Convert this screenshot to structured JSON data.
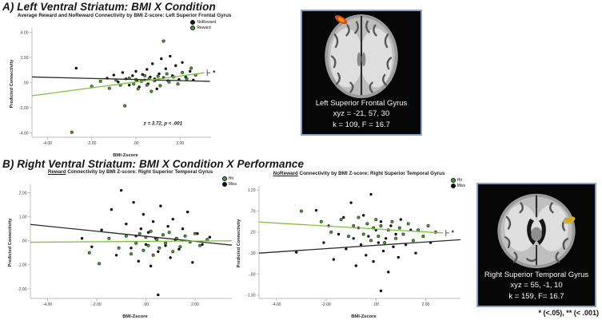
{
  "panel_a": {
    "heading": "A) Left Ventral Striatum: BMI X Condition"
  },
  "panel_b": {
    "heading": "B) Right Ventral Striatum: BMI X Condition X Performance"
  },
  "footnote": "* (<.05), ** (< .001)",
  "colors": {
    "reward_green_point": "#4e9a2e",
    "reward_green_line": "#7fc13e",
    "black_point": "#111111",
    "black_line": "#2b2b2b",
    "axis_gray": "#bbbbbb",
    "brain_border_blue": "#8aa0c6",
    "activation_orange": "#d84f10",
    "activation_yellow": "#c9b62e"
  },
  "brain_a": {
    "region": "Left Superior Frontal Gyrus",
    "coords": "xyz = -21, 57, 30",
    "stats": "k = 109, F = 16.7"
  },
  "brain_b": {
    "region": "Right Superior Temporal Gyrus",
    "coords": "xyz = 55, -1, 10",
    "stats": "k = 159, F= 16.7"
  },
  "chart_data": [
    {
      "type": "scatter",
      "title_prefix": "",
      "title_rest": "Average Reward and NoReward Connectivity by BMI Z-score: Left Superior Frontal Gyrus",
      "xlabel": "BMI-Zscore",
      "ylabel": "Predicted Connectivity",
      "xlim": [
        -4.7,
        3.4
      ],
      "ylim": [
        -4.35,
        4.35
      ],
      "xticks": [
        -4,
        -2,
        0,
        2
      ],
      "xtick_labels": [
        "-4.00",
        "-2.00",
        ".00",
        "2.00"
      ],
      "yticks": [
        4,
        2,
        0,
        -2,
        -4
      ],
      "ytick_labels": [
        "4.00",
        "2.00",
        ".00",
        "-2.00",
        "-4.00"
      ],
      "legend": [
        {
          "label": "NoReward",
          "color": "#111111"
        },
        {
          "label": "Reward",
          "color": "#4e9a2e"
        }
      ],
      "annotation": {
        "text": "z = 3.72, p < .001",
        "x": 0.35,
        "y": -3.35
      },
      "series": [
        {
          "name": "NoReward",
          "color": "#111111",
          "edge": "none",
          "line_color": "#2b2b2b",
          "line": {
            "x1": -4.7,
            "y1": 0.45,
            "x2": 3.35,
            "y2": 0.1,
            "cap": false,
            "star": ""
          },
          "points": [
            [
              -2.7,
              1.15
            ],
            [
              -1.3,
              0.35
            ],
            [
              -1.0,
              0.6
            ],
            [
              -0.8,
              0.05
            ],
            [
              -0.6,
              0.8
            ],
            [
              -0.45,
              0.3
            ],
            [
              -0.3,
              -0.2
            ],
            [
              -0.15,
              0.55
            ],
            [
              0.0,
              0.9
            ],
            [
              0.05,
              0.15
            ],
            [
              0.15,
              -0.35
            ],
            [
              0.3,
              0.65
            ],
            [
              0.4,
              0.2
            ],
            [
              0.5,
              1.05
            ],
            [
              0.55,
              -0.1
            ],
            [
              0.65,
              0.45
            ],
            [
              0.75,
              1.5
            ],
            [
              0.85,
              0.3
            ],
            [
              0.95,
              -0.5
            ],
            [
              1.05,
              0.7
            ],
            [
              1.15,
              1.9
            ],
            [
              1.25,
              0.4
            ],
            [
              1.35,
              1.1
            ],
            [
              1.45,
              0.15
            ],
            [
              1.55,
              2.1
            ],
            [
              1.65,
              0.55
            ],
            [
              1.8,
              1.35
            ],
            [
              1.95,
              0.25
            ],
            [
              2.1,
              1.6
            ],
            [
              2.25,
              0.45
            ],
            [
              2.45,
              0.9
            ],
            [
              2.6,
              0.2
            ]
          ]
        },
        {
          "name": "Reward",
          "color": "#4e9a2e",
          "edge": "#13310c",
          "line_color": "#7fc13e",
          "line": {
            "x1": -4.7,
            "y1": -1.05,
            "x2": 3.1,
            "y2": 0.78,
            "cap": true,
            "star": "*"
          },
          "points": [
            [
              -2.9,
              -3.95
            ],
            [
              -2.0,
              -0.3
            ],
            [
              -1.6,
              0.1
            ],
            [
              -1.2,
              -0.45
            ],
            [
              -0.9,
              0.2
            ],
            [
              -0.7,
              -0.2
            ],
            [
              -0.5,
              -1.85
            ],
            [
              -0.3,
              0.35
            ],
            [
              -0.1,
              -0.1
            ],
            [
              0.0,
              0.25
            ],
            [
              0.1,
              -0.5
            ],
            [
              0.25,
              0.1
            ],
            [
              0.4,
              0.55
            ],
            [
              0.5,
              -0.2
            ],
            [
              0.6,
              0.3
            ],
            [
              0.7,
              -0.7
            ],
            [
              0.85,
              0.15
            ],
            [
              1.0,
              0.5
            ],
            [
              1.1,
              -0.25
            ],
            [
              1.25,
              3.3
            ],
            [
              1.4,
              0.7
            ],
            [
              1.5,
              0.05
            ],
            [
              1.7,
              0.45
            ],
            [
              1.9,
              -0.1
            ],
            [
              2.1,
              0.8
            ],
            [
              2.3,
              0.3
            ],
            [
              2.5,
              1.15
            ],
            [
              2.7,
              0.6
            ]
          ]
        }
      ]
    },
    {
      "type": "scatter",
      "title_prefix": "Reward",
      "title_rest": " Connectivity by BMI Z-score: Right Superior Temporal Gyrus",
      "xlabel": "BMI-Zscore",
      "ylabel": "Predicted Connectivity",
      "xlim": [
        -4.7,
        3.5
      ],
      "ylim": [
        -2.4,
        2.35
      ],
      "xticks": [
        -4,
        -2,
        0,
        2
      ],
      "xtick_labels": [
        "-4.00",
        "-2.00",
        ".00",
        "2.00"
      ],
      "yticks": [
        2,
        1,
        0,
        -1,
        -2
      ],
      "ytick_labels": [
        "2.00",
        "1.00",
        ".00",
        "-1.00",
        "-2.00"
      ],
      "legend": [
        {
          "label": "Hit",
          "color": "#4e9a2e"
        },
        {
          "label": "Miss",
          "color": "#111111"
        }
      ],
      "annotation": null,
      "series": [
        {
          "name": "Miss",
          "color": "#111111",
          "edge": "none",
          "line_color": "#2b2b2b",
          "line": {
            "x1": -4.7,
            "y1": 0.68,
            "x2": 3.5,
            "y2": -0.18,
            "cap": false,
            "star": ""
          },
          "points": [
            [
              -2.6,
              0.1
            ],
            [
              -2.2,
              -0.25
            ],
            [
              -1.8,
              0.45
            ],
            [
              -1.4,
              1.3
            ],
            [
              -1.2,
              -0.6
            ],
            [
              -1.0,
              2.1
            ],
            [
              -0.8,
              0.7
            ],
            [
              -0.6,
              -0.3
            ],
            [
              -0.5,
              1.6
            ],
            [
              -0.4,
              0.2
            ],
            [
              -0.3,
              -0.85
            ],
            [
              -0.2,
              0.5
            ],
            [
              -0.1,
              1.1
            ],
            [
              0.0,
              -0.15
            ],
            [
              0.1,
              0.35
            ],
            [
              0.2,
              -1.05
            ],
            [
              0.3,
              0.8
            ],
            [
              0.4,
              0.1
            ],
            [
              0.5,
              -0.45
            ],
            [
              0.6,
              1.45
            ],
            [
              0.7,
              0.25
            ],
            [
              0.8,
              -0.2
            ],
            [
              0.9,
              0.6
            ],
            [
              1.0,
              -0.7
            ],
            [
              1.1,
              0.9
            ],
            [
              1.2,
              0.05
            ],
            [
              1.35,
              -0.35
            ],
            [
              1.5,
              0.5
            ],
            [
              1.7,
              1.2
            ],
            [
              1.9,
              -0.9
            ],
            [
              2.1,
              0.3
            ],
            [
              2.3,
              -0.15
            ],
            [
              0.5,
              -2.25
            ],
            [
              2.6,
              0.15
            ]
          ]
        },
        {
          "name": "Hit",
          "color": "#4e9a2e",
          "edge": "#13310c",
          "line_color": "#7fc13e",
          "line": {
            "x1": -4.7,
            "y1": -0.06,
            "x2": 3.5,
            "y2": 0.0,
            "cap": false,
            "star": ""
          },
          "points": [
            [
              -2.3,
              -0.5
            ],
            [
              -1.9,
              -0.95
            ],
            [
              -1.5,
              0.1
            ],
            [
              -1.1,
              -0.3
            ],
            [
              -0.8,
              0.2
            ],
            [
              -0.6,
              -0.55
            ],
            [
              -0.4,
              -0.1
            ],
            [
              -0.25,
              0.3
            ],
            [
              -0.1,
              -0.4
            ],
            [
              0.0,
              0.15
            ],
            [
              0.1,
              -0.2
            ],
            [
              0.2,
              0.4
            ],
            [
              0.3,
              -0.6
            ],
            [
              0.45,
              0.05
            ],
            [
              0.55,
              -0.3
            ],
            [
              0.7,
              0.25
            ],
            [
              0.8,
              -0.1
            ],
            [
              0.95,
              0.35
            ],
            [
              1.1,
              -0.45
            ],
            [
              1.25,
              0.1
            ],
            [
              1.4,
              -0.25
            ],
            [
              1.6,
              0.2
            ],
            [
              1.8,
              -0.05
            ],
            [
              2.0,
              0.3
            ],
            [
              2.2,
              -0.2
            ],
            [
              2.5,
              0.05
            ]
          ]
        }
      ]
    },
    {
      "type": "scatter",
      "title_prefix": "NoReward",
      "title_rest": " Connectivity by BMI Z-score: Right Superior Temporal Gyrus",
      "xlabel": "BMI-Zscore",
      "ylabel": "Predicted Connectivity",
      "xlim": [
        -4.7,
        3.4
      ],
      "ylim": [
        -1.38,
        1.3
      ],
      "xticks": [
        -4,
        -2,
        0,
        2
      ],
      "xtick_labels": [
        "-4.00",
        "-2.00",
        ".00",
        "2.00"
      ],
      "yticks": [
        1.2,
        0.7,
        0.2,
        -0.3,
        -0.8,
        -1.3
      ],
      "ytick_labels": [
        "1.20",
        ".70",
        ".20",
        "-.30",
        "-.80",
        "-1.30"
      ],
      "legend": [
        {
          "label": "Hit",
          "color": "#4e9a2e"
        },
        {
          "label": "Miss",
          "color": "#111111"
        }
      ],
      "annotation": null,
      "series": [
        {
          "name": "Miss",
          "color": "#111111",
          "edge": "none",
          "line_color": "#2b2b2b",
          "line": {
            "x1": -4.7,
            "y1": -0.3,
            "x2": 3.4,
            "y2": 0.02,
            "cap": false,
            "star": ""
          },
          "points": [
            [
              -3.2,
              -0.28
            ],
            [
              -2.4,
              0.72
            ],
            [
              -2.1,
              -0.05
            ],
            [
              -1.9,
              0.35
            ],
            [
              -1.7,
              -0.45
            ],
            [
              -1.5,
              0.15
            ],
            [
              -1.3,
              0.55
            ],
            [
              -1.2,
              -0.2
            ],
            [
              -1.0,
              0.9
            ],
            [
              -0.9,
              0.05
            ],
            [
              -0.8,
              -0.6
            ],
            [
              -0.7,
              0.3
            ],
            [
              -0.6,
              -0.1
            ],
            [
              -0.5,
              0.6
            ],
            [
              -0.4,
              -0.35
            ],
            [
              -0.3,
              0.1
            ],
            [
              -0.2,
              1.1
            ],
            [
              -0.1,
              -0.5
            ],
            [
              0.0,
              0.25
            ],
            [
              0.1,
              -0.05
            ],
            [
              0.2,
              0.45
            ],
            [
              0.3,
              -0.25
            ],
            [
              0.4,
              0.05
            ],
            [
              0.5,
              -0.75
            ],
            [
              0.6,
              0.35
            ],
            [
              0.7,
              -0.15
            ],
            [
              0.8,
              0.15
            ],
            [
              0.9,
              -0.4
            ],
            [
              1.0,
              0.5
            ],
            [
              1.2,
              -0.1
            ],
            [
              1.4,
              0.25
            ],
            [
              1.6,
              -0.3
            ],
            [
              1.9,
              0.1
            ],
            [
              2.2,
              -0.05
            ],
            [
              0.2,
              -1.2
            ]
          ]
        },
        {
          "name": "Hit",
          "color": "#4e9a2e",
          "edge": "#13310c",
          "line_color": "#7fc13e",
          "line": {
            "x1": -4.7,
            "y1": 0.44,
            "x2": 2.7,
            "y2": 0.18,
            "cap": true,
            "star": "*"
          },
          "points": [
            [
              -3.0,
              0.7
            ],
            [
              -2.2,
              0.45
            ],
            [
              -1.8,
              0.2
            ],
            [
              -1.4,
              0.5
            ],
            [
              -1.1,
              0.1
            ],
            [
              -0.9,
              0.35
            ],
            [
              -0.7,
              0.55
            ],
            [
              -0.5,
              0.15
            ],
            [
              -0.35,
              0.4
            ],
            [
              -0.2,
              0.0
            ],
            [
              -0.1,
              0.3
            ],
            [
              0.0,
              0.5
            ],
            [
              0.1,
              0.1
            ],
            [
              0.2,
              0.35
            ],
            [
              0.35,
              -0.05
            ],
            [
              0.5,
              0.25
            ],
            [
              0.65,
              0.45
            ],
            [
              0.8,
              0.05
            ],
            [
              0.95,
              0.3
            ],
            [
              1.1,
              0.15
            ],
            [
              1.3,
              0.4
            ],
            [
              1.5,
              0.0
            ],
            [
              1.7,
              0.25
            ],
            [
              1.9,
              0.1
            ],
            [
              2.1,
              0.35
            ],
            [
              2.4,
              0.2
            ]
          ]
        }
      ]
    }
  ]
}
